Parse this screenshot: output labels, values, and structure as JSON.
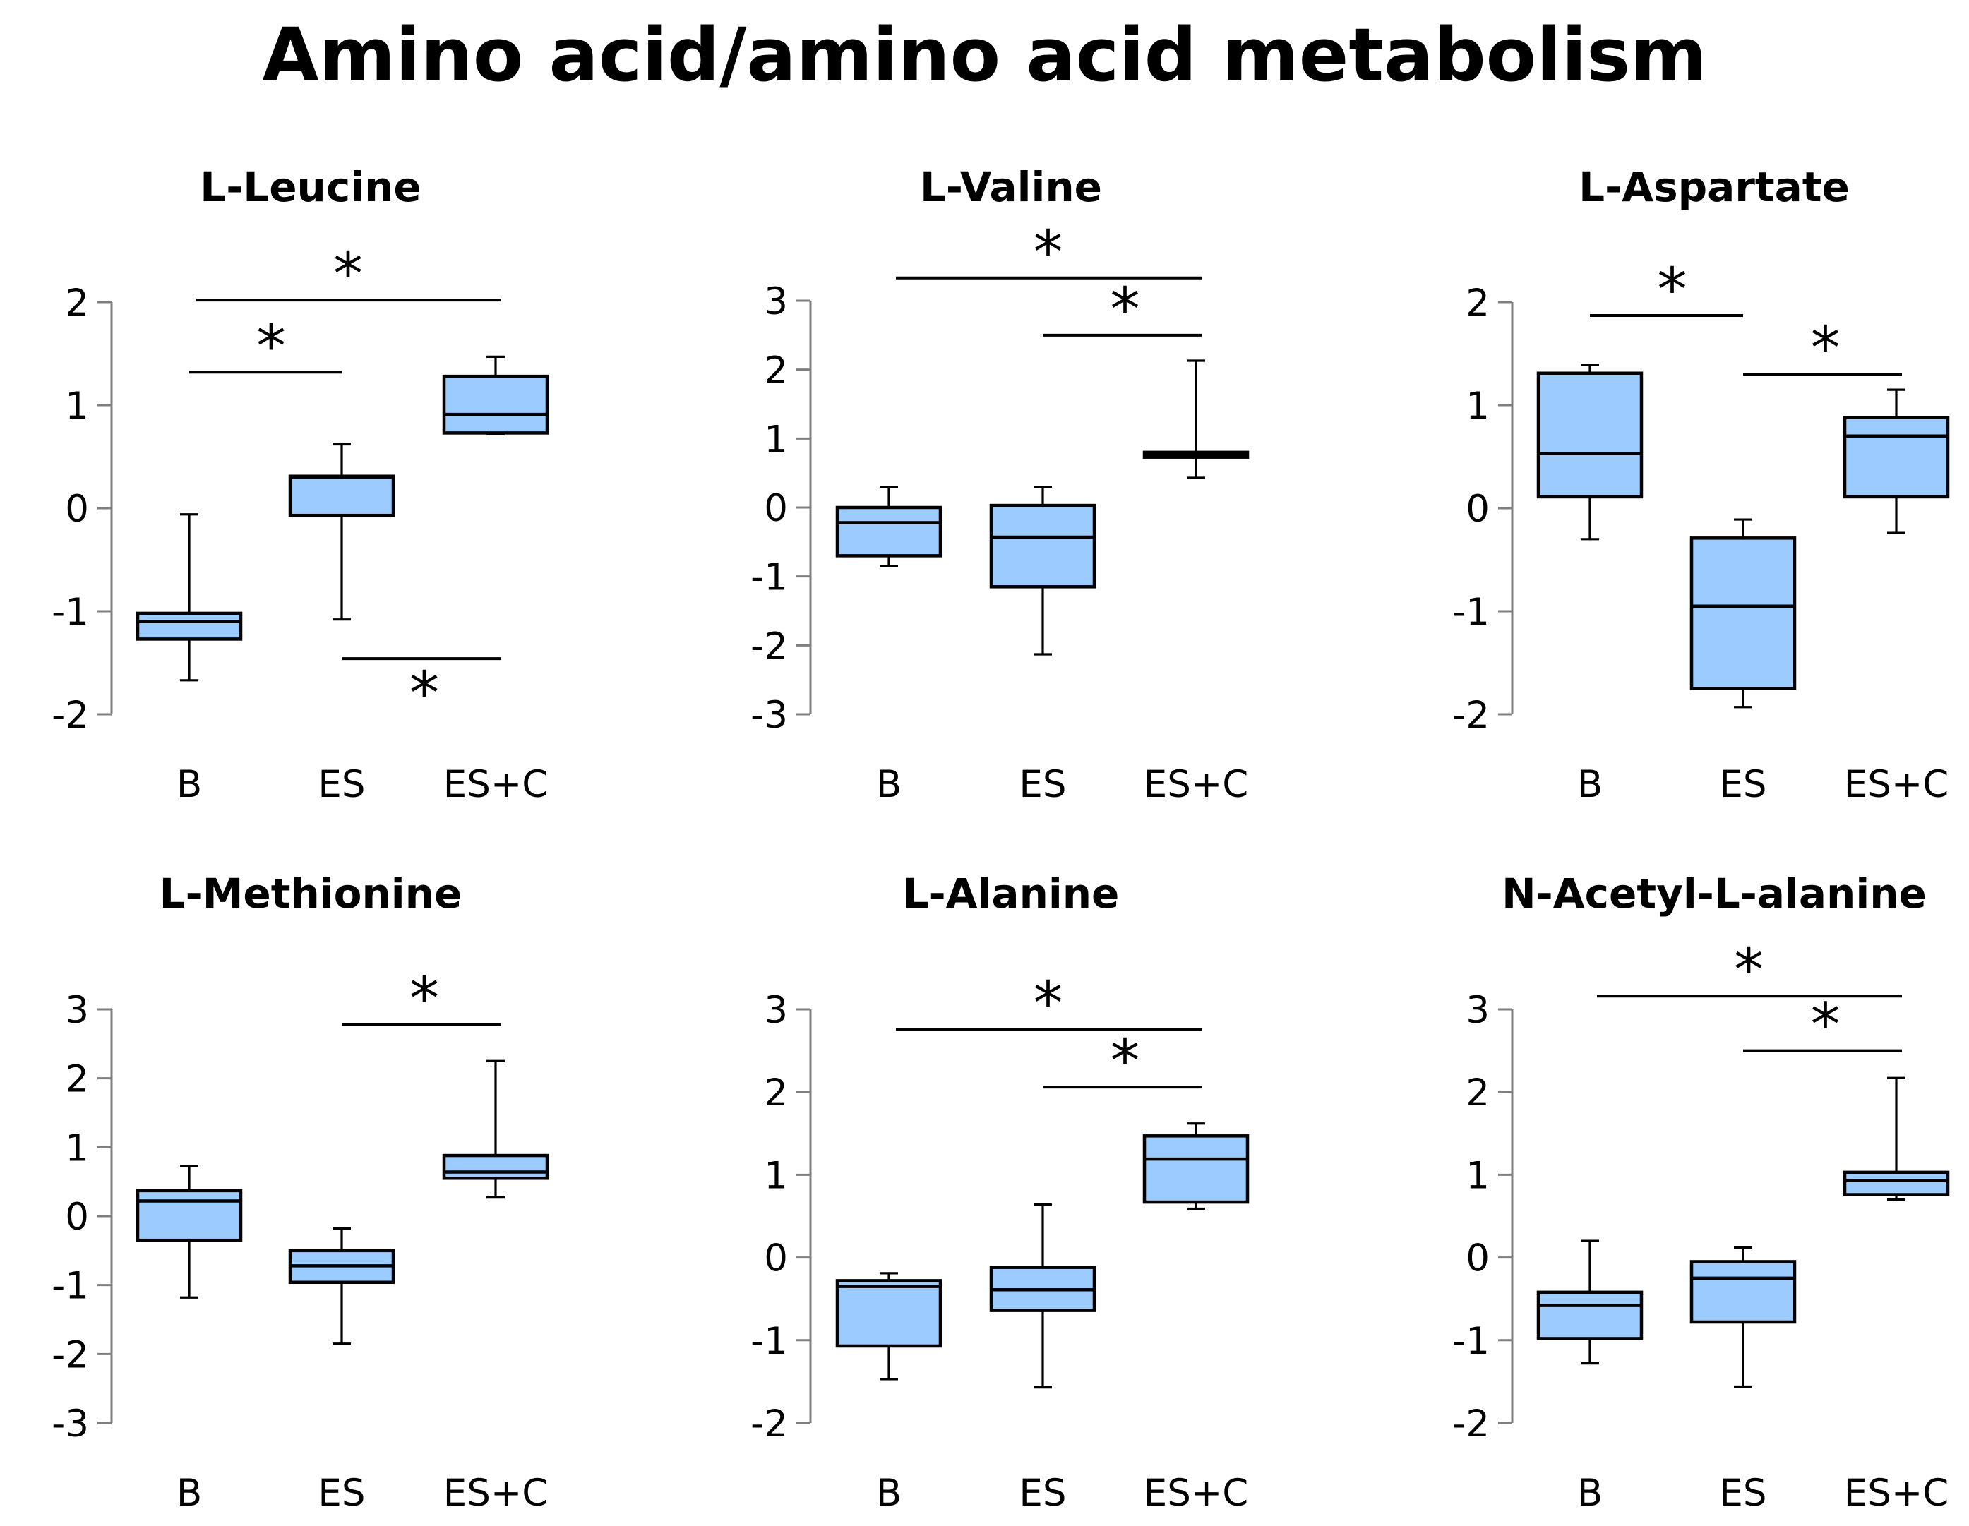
{
  "title": "Amino acid/amino acid metabolism",
  "chart_data": [
    {
      "type": "box",
      "title": "L-Leucine",
      "categories": [
        "B",
        "ES",
        "ES+C"
      ],
      "ylim": [
        -2,
        2
      ],
      "yticks": [
        -2,
        -1,
        0,
        1,
        2
      ],
      "ytick_labels": [
        "-2",
        "-1",
        "0",
        "1",
        "2"
      ],
      "boxes": [
        {
          "min": -1.67,
          "q1": -1.27,
          "median": -1.1,
          "q3": -1.02,
          "max": -0.06
        },
        {
          "min": -1.08,
          "q1": -0.07,
          "median": 0.3,
          "q3": 0.31,
          "max": 0.62
        },
        {
          "min": 0.72,
          "q1": 0.73,
          "median": 0.91,
          "q3": 1.28,
          "max": 1.47
        }
      ],
      "significance": [
        {
          "from": 0,
          "to": 2,
          "y": 2.02,
          "label": "*",
          "label_side": "above"
        },
        {
          "from": 0,
          "to": 1,
          "y": 1.32,
          "label": "*",
          "label_side": "above"
        },
        {
          "from": 1,
          "to": 2,
          "y": -1.46,
          "label": "*",
          "label_side": "below"
        }
      ]
    },
    {
      "type": "box",
      "title": "L-Valine",
      "categories": [
        "B",
        "ES",
        "ES+C"
      ],
      "ylim": [
        -3,
        3
      ],
      "yticks": [
        -3,
        -2,
        -1,
        0,
        1,
        2,
        3
      ],
      "ytick_labels": [
        "-3",
        "-2",
        "-1",
        "0",
        "1",
        "2",
        "3"
      ],
      "boxes": [
        {
          "min": -0.85,
          "q1": -0.7,
          "median": -0.22,
          "q3": 0.0,
          "max": 0.3
        },
        {
          "min": -2.13,
          "q1": -1.15,
          "median": -0.43,
          "q3": 0.03,
          "max": 0.3
        },
        {
          "min": 0.43,
          "q1": 0.73,
          "median": 0.77,
          "q3": 0.8,
          "max": 2.13
        }
      ],
      "significance": [
        {
          "from": 0,
          "to": 2,
          "y": 3.33,
          "label": "*",
          "label_side": "above"
        },
        {
          "from": 1,
          "to": 2,
          "y": 2.5,
          "label": "*",
          "label_side": "above"
        }
      ]
    },
    {
      "type": "box",
      "title": "L-Aspartate",
      "categories": [
        "B",
        "ES",
        "ES+C"
      ],
      "ylim": [
        -2,
        2
      ],
      "yticks": [
        -2,
        -1,
        0,
        1,
        2
      ],
      "ytick_labels": [
        "-2",
        "-1",
        "0",
        "1",
        "2"
      ],
      "boxes": [
        {
          "min": -0.3,
          "q1": 0.11,
          "median": 0.53,
          "q3": 1.31,
          "max": 1.39
        },
        {
          "min": -1.93,
          "q1": -1.75,
          "median": -0.95,
          "q3": -0.29,
          "max": -0.11
        },
        {
          "min": -0.24,
          "q1": 0.11,
          "median": 0.7,
          "q3": 0.88,
          "max": 1.15
        }
      ],
      "significance": [
        {
          "from": 0,
          "to": 1,
          "y": 1.87,
          "label": "*",
          "label_side": "above"
        },
        {
          "from": 1,
          "to": 2,
          "y": 1.3,
          "label": "*",
          "label_side": "above"
        }
      ]
    },
    {
      "type": "box",
      "title": "L-Methionine",
      "categories": [
        "B",
        "ES",
        "ES+C"
      ],
      "ylim": [
        -3,
        3
      ],
      "yticks": [
        -3,
        -2,
        -1,
        0,
        1,
        2,
        3
      ],
      "ytick_labels": [
        "-3",
        "-2",
        "-1",
        "0",
        "1",
        "2",
        "3"
      ],
      "boxes": [
        {
          "min": -1.18,
          "q1": -0.35,
          "median": 0.22,
          "q3": 0.37,
          "max": 0.73
        },
        {
          "min": -1.85,
          "q1": -0.96,
          "median": -0.72,
          "q3": -0.5,
          "max": -0.18
        },
        {
          "min": 0.27,
          "q1": 0.55,
          "median": 0.64,
          "q3": 0.88,
          "max": 2.25
        }
      ],
      "significance": [
        {
          "from": 1,
          "to": 2,
          "y": 2.78,
          "label": "*",
          "label_side": "above"
        }
      ]
    },
    {
      "type": "box",
      "title": "L-Alanine",
      "categories": [
        "B",
        "ES",
        "ES+C"
      ],
      "ylim": [
        -2,
        3
      ],
      "yticks": [
        -2,
        -1,
        0,
        1,
        2,
        3
      ],
      "ytick_labels": [
        "-2",
        "-1",
        "0",
        "1",
        "2",
        "3"
      ],
      "boxes": [
        {
          "min": -1.47,
          "q1": -1.07,
          "median": -0.35,
          "q3": -0.28,
          "max": -0.19
        },
        {
          "min": -1.57,
          "q1": -0.64,
          "median": -0.39,
          "q3": -0.12,
          "max": 0.64
        },
        {
          "min": 0.59,
          "q1": 0.67,
          "median": 1.19,
          "q3": 1.47,
          "max": 1.62
        }
      ],
      "significance": [
        {
          "from": 0,
          "to": 2,
          "y": 2.76,
          "label": "*",
          "label_side": "above"
        },
        {
          "from": 1,
          "to": 2,
          "y": 2.06,
          "label": "*",
          "label_side": "above"
        }
      ]
    },
    {
      "type": "box",
      "title": "N-Acetyl-L-alanine",
      "categories": [
        "B",
        "ES",
        "ES+C"
      ],
      "ylim": [
        -2,
        3
      ],
      "yticks": [
        -2,
        -1,
        0,
        1,
        2,
        3
      ],
      "ytick_labels": [
        "-2",
        "-1",
        "0",
        "1",
        "2",
        "3"
      ],
      "boxes": [
        {
          "min": -1.28,
          "q1": -0.98,
          "median": -0.58,
          "q3": -0.42,
          "max": 0.2
        },
        {
          "min": -1.56,
          "q1": -0.78,
          "median": -0.25,
          "q3": -0.05,
          "max": 0.12
        },
        {
          "min": 0.7,
          "q1": 0.76,
          "median": 0.93,
          "q3": 1.03,
          "max": 2.17
        }
      ],
      "significance": [
        {
          "from": 0,
          "to": 2,
          "y": 3.16,
          "label": "*",
          "label_side": "above"
        },
        {
          "from": 1,
          "to": 2,
          "y": 2.5,
          "label": "*",
          "label_side": "above"
        }
      ]
    }
  ]
}
